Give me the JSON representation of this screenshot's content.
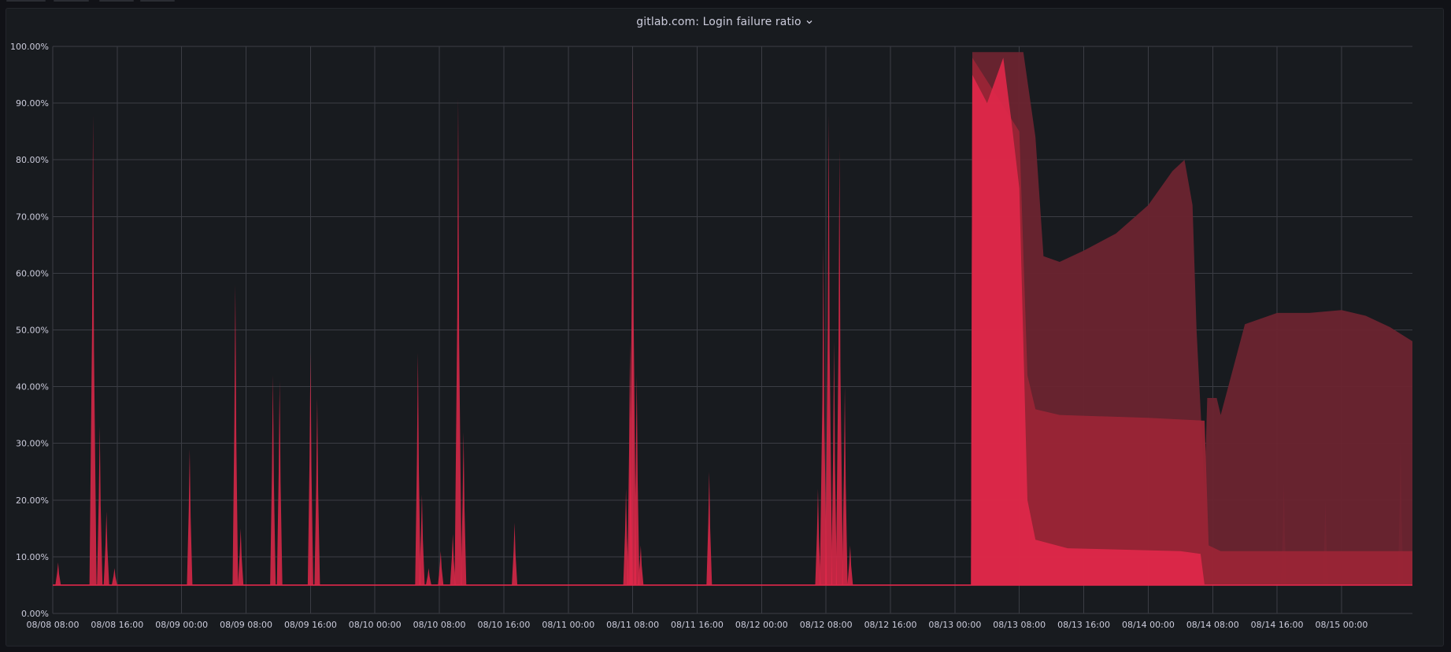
{
  "panel": {
    "title": "gitlab.com: Login failure ratio"
  },
  "icons": {
    "title_menu": "chevron-down-icon"
  },
  "colors": {
    "background": "#111217",
    "panel": "#181b1f",
    "grid": "#3b3d44",
    "series_bright": "#e0284a",
    "series_dark": "#6b2430",
    "series_mid": "#9a2536"
  },
  "chart_data": {
    "type": "area",
    "ylim": [
      0,
      100
    ],
    "yunit": "%",
    "y_ticks": [
      "0.00%",
      "10.00%",
      "20.00%",
      "30.00%",
      "40.00%",
      "50.00%",
      "60.00%",
      "70.00%",
      "80.00%",
      "90.00%",
      "100.00%"
    ],
    "x_ticks": [
      "08/08 08:00",
      "08/08 16:00",
      "08/09 00:00",
      "08/09 08:00",
      "08/09 16:00",
      "08/10 00:00",
      "08/10 08:00",
      "08/10 16:00",
      "08/11 00:00",
      "08/11 08:00",
      "08/11 16:00",
      "08/12 00:00",
      "08/12 08:00",
      "08/12 16:00",
      "08/13 00:00",
      "08/13 08:00",
      "08/13 16:00",
      "08/14 00:00",
      "08/14 08:00",
      "08/14 16:00",
      "08/15 00:00"
    ],
    "x_range": [
      "08/08 08:00",
      "08/15 08:48"
    ],
    "grid": true,
    "legend": "none",
    "baseline": 5,
    "spikes": [
      {
        "t": "08/08 08:40",
        "peak": 9
      },
      {
        "t": "08/08 13:00",
        "peak": 88
      },
      {
        "t": "08/08 13:50",
        "peak": 33
      },
      {
        "t": "08/08 14:40",
        "peak": 18
      },
      {
        "t": "08/08 15:40",
        "peak": 8
      },
      {
        "t": "08/09 01:00",
        "peak": 29
      },
      {
        "t": "08/09 06:40",
        "peak": 58
      },
      {
        "t": "08/09 07:20",
        "peak": 15
      },
      {
        "t": "08/09 11:20",
        "peak": 42
      },
      {
        "t": "08/09 12:10",
        "peak": 41
      },
      {
        "t": "08/09 16:00",
        "peak": 46
      },
      {
        "t": "08/09 16:50",
        "peak": 38
      },
      {
        "t": "08/10 05:20",
        "peak": 46
      },
      {
        "t": "08/10 05:50",
        "peak": 21
      },
      {
        "t": "08/10 06:40",
        "peak": 8
      },
      {
        "t": "08/10 08:10",
        "peak": 11
      },
      {
        "t": "08/10 09:40",
        "peak": 14
      },
      {
        "t": "08/10 10:20",
        "peak": 91
      },
      {
        "t": "08/10 11:00",
        "peak": 32
      },
      {
        "t": "08/10 17:20",
        "peak": 16
      },
      {
        "t": "08/11 07:10",
        "peak": 22
      },
      {
        "t": "08/11 07:40",
        "peak": 48
      },
      {
        "t": "08/11 08:00",
        "peak": 99
      },
      {
        "t": "08/11 08:30",
        "peak": 42
      },
      {
        "t": "08/11 09:00",
        "peak": 12
      },
      {
        "t": "08/11 17:30",
        "peak": 25
      },
      {
        "t": "08/12 07:00",
        "peak": 22
      },
      {
        "t": "08/12 07:40",
        "peak": 65
      },
      {
        "t": "08/12 08:20",
        "peak": 88
      },
      {
        "t": "08/12 09:00",
        "peak": 48
      },
      {
        "t": "08/12 09:40",
        "peak": 82
      },
      {
        "t": "08/12 10:20",
        "peak": 40
      },
      {
        "t": "08/12 11:00",
        "peak": 12
      },
      {
        "t": "08/14 16:50",
        "peak": 23
      },
      {
        "t": "08/14 22:00",
        "peak": 20
      },
      {
        "t": "08/15 07:20",
        "peak": 30
      }
    ],
    "series": [
      {
        "label": "dark band",
        "points": [
          [
            "08/13 02:00",
            5
          ],
          [
            "08/13 02:10",
            99
          ],
          [
            "08/13 06:20",
            99
          ],
          [
            "08/13 08:30",
            99
          ],
          [
            "08/13 10:00",
            84
          ],
          [
            "08/13 11:00",
            63
          ],
          [
            "08/13 13:00",
            62
          ],
          [
            "08/13 16:00",
            64
          ],
          [
            "08/13 20:00",
            67
          ],
          [
            "08/14 00:00",
            72
          ],
          [
            "08/14 03:00",
            78
          ],
          [
            "08/14 04:30",
            80
          ],
          [
            "08/14 05:30",
            72
          ],
          [
            "08/14 06:00",
            50
          ],
          [
            "08/14 07:00",
            22
          ],
          [
            "08/14 07:20",
            38
          ],
          [
            "08/14 08:30",
            38
          ],
          [
            "08/14 09:00",
            35
          ],
          [
            "08/14 12:00",
            51
          ],
          [
            "08/14 16:00",
            53
          ],
          [
            "08/14 20:00",
            53
          ],
          [
            "08/15 00:00",
            53.5
          ],
          [
            "08/15 03:00",
            52.5
          ],
          [
            "08/15 06:00",
            50.5
          ],
          [
            "08/15 08:48",
            48
          ]
        ]
      },
      {
        "label": "mid band",
        "points": [
          [
            "08/13 02:00",
            5
          ],
          [
            "08/13 02:10",
            98
          ],
          [
            "08/13 08:00",
            85
          ],
          [
            "08/13 09:00",
            42
          ],
          [
            "08/13 10:00",
            36
          ],
          [
            "08/13 13:00",
            35
          ],
          [
            "08/14 00:00",
            34.5
          ],
          [
            "08/14 07:00",
            34
          ],
          [
            "08/14 07:30",
            12
          ],
          [
            "08/14 09:00",
            11
          ],
          [
            "08/15 08:48",
            11
          ]
        ]
      },
      {
        "label": "bright band",
        "points": [
          [
            "08/13 02:00",
            5
          ],
          [
            "08/13 02:10",
            95
          ],
          [
            "08/13 04:00",
            90
          ],
          [
            "08/13 06:00",
            98
          ],
          [
            "08/13 07:00",
            87
          ],
          [
            "08/13 08:00",
            75
          ],
          [
            "08/13 09:00",
            20
          ],
          [
            "08/13 10:00",
            13
          ],
          [
            "08/13 14:00",
            11.5
          ],
          [
            "08/14 04:00",
            11
          ],
          [
            "08/14 06:30",
            10.5
          ],
          [
            "08/14 07:00",
            5
          ],
          [
            "08/15 08:48",
            5
          ]
        ]
      }
    ]
  }
}
